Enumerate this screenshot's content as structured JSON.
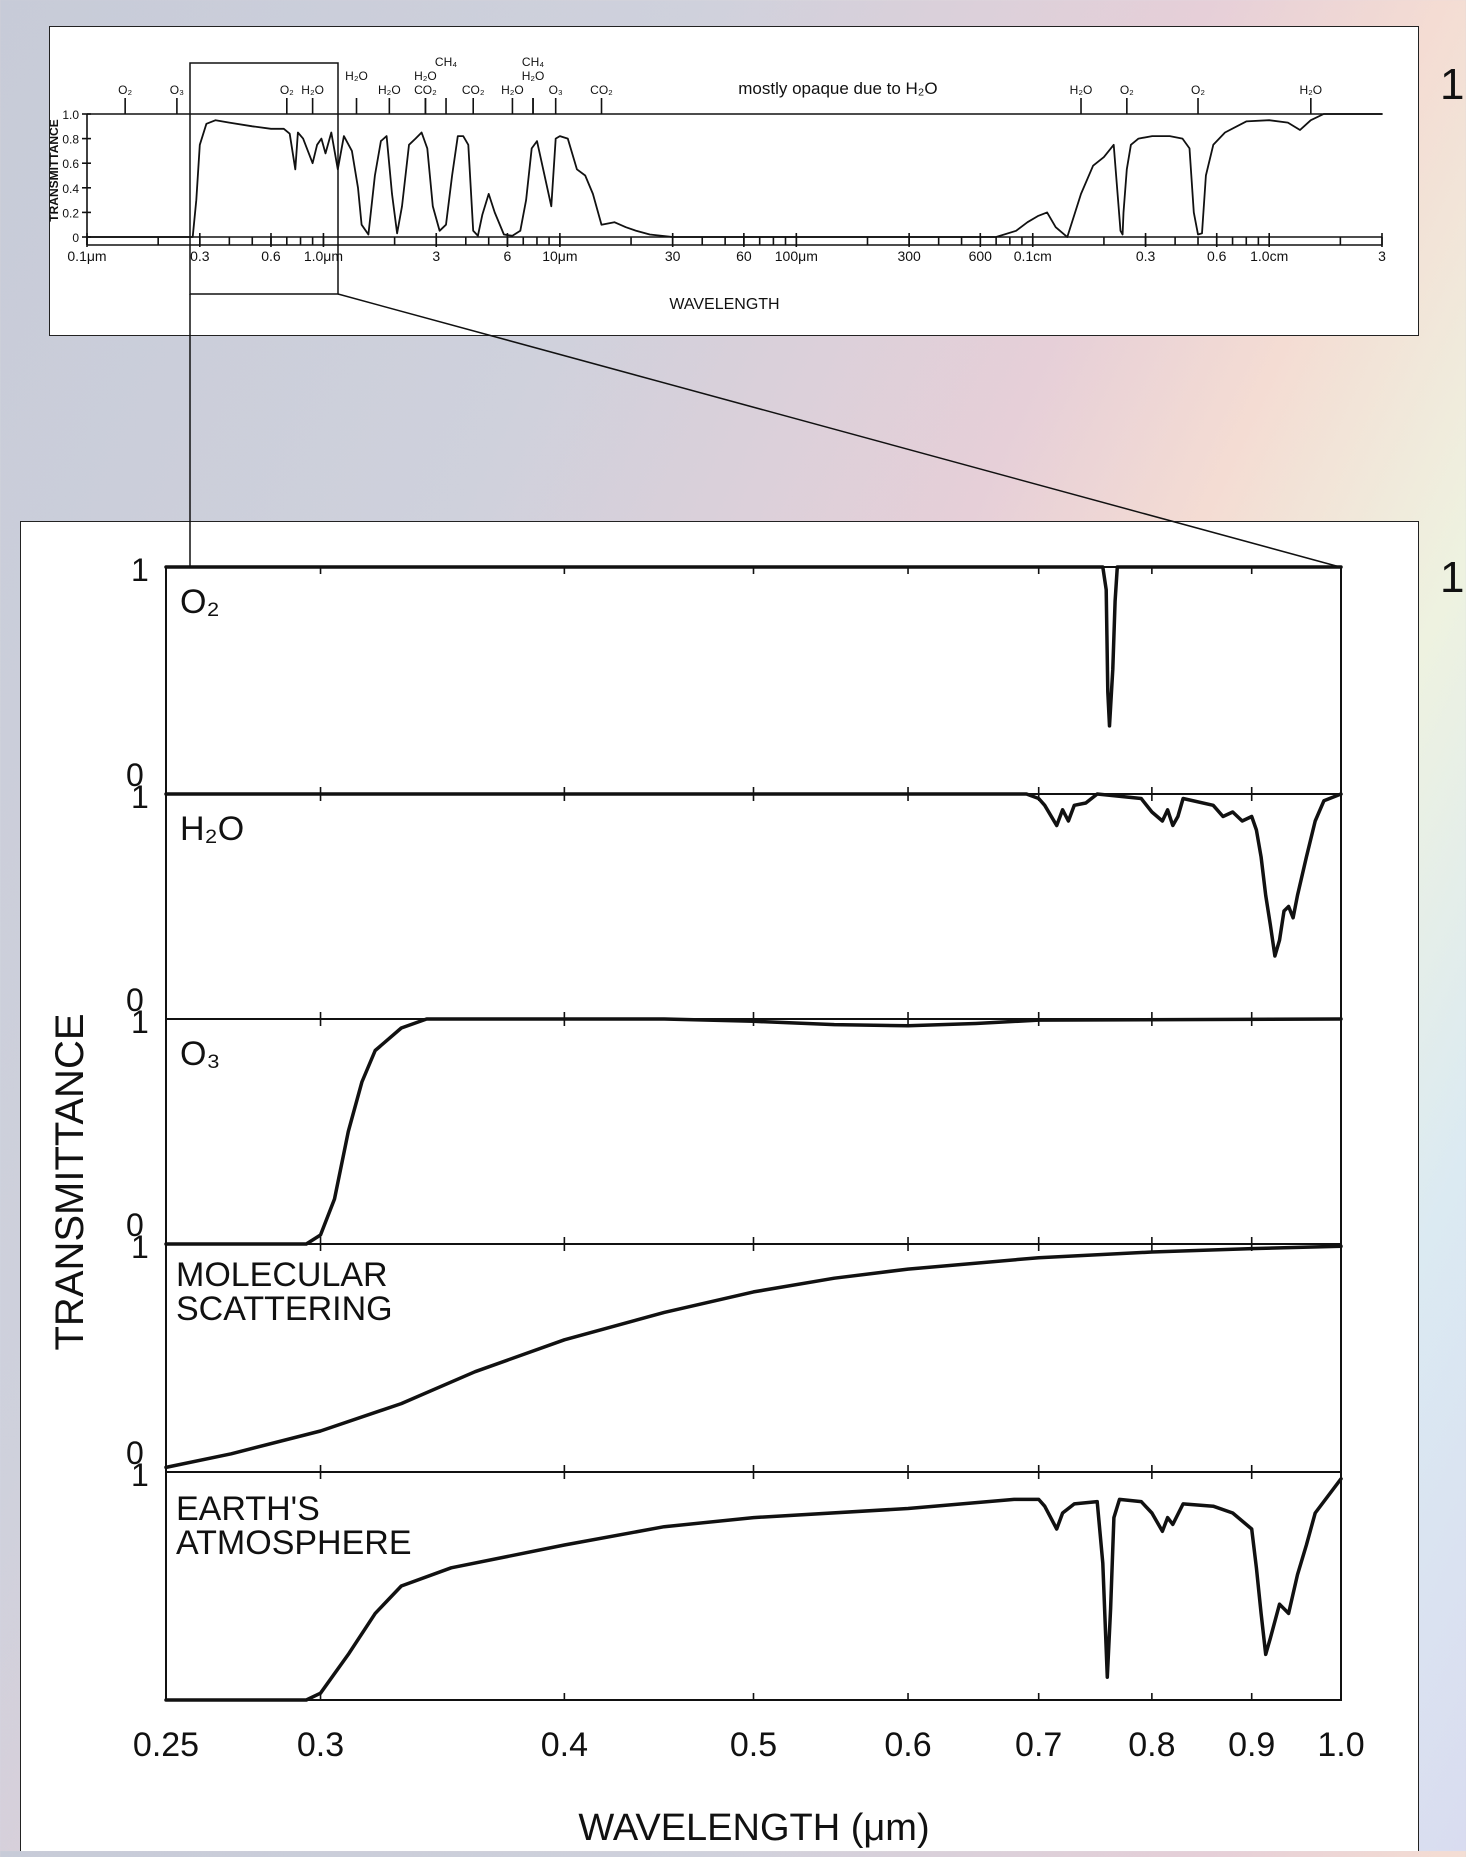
{
  "slide_numbers": [
    "1",
    "1"
  ],
  "chart_data": [
    {
      "type": "line",
      "id": "full-spectrum",
      "ylabel": "TRANSMITTANCE",
      "xlabel": "WAVELENGTH",
      "x_scale": "log",
      "ylim": [
        0,
        1.0
      ],
      "y_ticks": [
        "0",
        "0.2",
        "0.4",
        "0.6",
        "0.8",
        "1.0"
      ],
      "x_ticks": [
        {
          "label": "0.1μm",
          "x_um": 0.1
        },
        {
          "label": "0.3",
          "x_um": 0.3
        },
        {
          "label": "0.6",
          "x_um": 0.6
        },
        {
          "label": "1.0μm",
          "x_um": 1.0
        },
        {
          "label": "3",
          "x_um": 3
        },
        {
          "label": "6",
          "x_um": 6
        },
        {
          "label": "10μm",
          "x_um": 10
        },
        {
          "label": "30",
          "x_um": 30
        },
        {
          "label": "60",
          "x_um": 60
        },
        {
          "label": "100μm",
          "x_um": 100
        },
        {
          "label": "300",
          "x_um": 300
        },
        {
          "label": "600",
          "x_um": 600
        },
        {
          "label": "0.1cm",
          "x_um": 1000
        },
        {
          "label": "0.3",
          "x_um": 3000
        },
        {
          "label": "0.6",
          "x_um": 6000
        },
        {
          "label": "1.0cm",
          "x_um": 10000
        },
        {
          "label": "3",
          "x_um": 30000
        }
      ],
      "band_labels": [
        {
          "text": "O₂",
          "x_um": 0.145
        },
        {
          "text": "O₃",
          "x_um": 0.24
        },
        {
          "text": "O₂",
          "x_um": 0.7
        },
        {
          "text": "H₂O",
          "x_um": 0.9
        },
        {
          "text": "H₂O",
          "x_um": 1.38
        },
        {
          "text": "H₂O",
          "x_um": 1.9
        },
        {
          "text": "CH₄",
          "x_um": 3.3
        },
        {
          "text": "H₂O",
          "x_um": 2.7
        },
        {
          "text": "CO₂",
          "x_um": 2.7
        },
        {
          "text": "CO₂",
          "x_um": 4.3
        },
        {
          "text": "CH₄",
          "x_um": 7.7
        },
        {
          "text": "H₂O",
          "x_um": 7.7
        },
        {
          "text": "H₂O",
          "x_um": 6.3
        },
        {
          "text": "O₃",
          "x_um": 9.6
        },
        {
          "text": "CO₂",
          "x_um": 15
        },
        {
          "text": "mostly opaque due to H₂O",
          "x_um": 150
        },
        {
          "text": "H₂O",
          "x_um": 1600
        },
        {
          "text": "O₂",
          "x_um": 2500
        },
        {
          "text": "O₂",
          "x_um": 5000
        },
        {
          "text": "H₂O",
          "x_um": 15000
        }
      ],
      "series": [
        {
          "x": [
            0.1,
            0.28,
            0.29,
            0.3,
            0.32,
            0.35,
            0.4,
            0.5,
            0.6,
            0.68,
            0.72,
            0.76,
            0.78,
            0.82,
            0.9,
            0.94,
            0.98,
            1.02,
            1.08,
            1.15,
            1.22,
            1.32,
            1.4,
            1.45,
            1.55,
            1.65,
            1.75,
            1.85,
            1.95,
            2.05,
            2.15,
            2.3,
            2.45,
            2.6,
            2.75,
            2.9,
            3.1,
            3.3,
            3.5,
            3.7,
            3.9,
            4.1,
            4.3,
            4.5,
            4.7,
            5.0,
            5.3,
            5.8,
            6.3,
            6.8,
            7.2,
            7.6,
            8.0,
            8.5,
            9.2,
            9.6,
            10.0,
            10.8,
            11.8,
            12.8,
            13.8,
            15.0,
            17.0,
            19.0,
            21.0,
            24.0,
            30.0,
            700,
            850,
            950,
            1050,
            1150,
            1250,
            1400,
            1600,
            1800,
            2000,
            2200,
            2350,
            2400,
            2420,
            2500,
            2600,
            2800,
            3200,
            3800,
            4300,
            4600,
            4800,
            5000,
            5200,
            5400,
            5800,
            6500,
            8000,
            10000,
            12000,
            13500,
            15000,
            17000,
            20000,
            25000,
            30000
          ],
          "y": [
            0,
            0,
            0.3,
            0.75,
            0.92,
            0.95,
            0.93,
            0.9,
            0.88,
            0.88,
            0.84,
            0.55,
            0.85,
            0.8,
            0.6,
            0.75,
            0.8,
            0.68,
            0.85,
            0.55,
            0.82,
            0.7,
            0.4,
            0.1,
            0.02,
            0.5,
            0.78,
            0.82,
            0.35,
            0.03,
            0.25,
            0.75,
            0.8,
            0.85,
            0.72,
            0.25,
            0.05,
            0.1,
            0.5,
            0.82,
            0.82,
            0.75,
            0.05,
            0.01,
            0.18,
            0.35,
            0.2,
            0.02,
            0.01,
            0.05,
            0.3,
            0.72,
            0.78,
            0.55,
            0.25,
            0.8,
            0.82,
            0.8,
            0.55,
            0.5,
            0.35,
            0.1,
            0.12,
            0.08,
            0.05,
            0.02,
            0,
            0,
            0.05,
            0.12,
            0.17,
            0.2,
            0.08,
            0,
            0.35,
            0.58,
            0.65,
            0.75,
            0.05,
            0.02,
            0.2,
            0.55,
            0.75,
            0.8,
            0.82,
            0.82,
            0.8,
            0.72,
            0.2,
            0.02,
            0.03,
            0.5,
            0.75,
            0.85,
            0.94,
            0.95,
            0.93,
            0.87,
            0.95,
            1.0,
            1.0,
            1.0,
            1.0
          ]
        }
      ]
    },
    {
      "type": "line",
      "id": "zoomed-panels",
      "ylabel": "TRANSMITTANCE",
      "xlabel": "WAVELENGTH (μm)",
      "x_scale": "log",
      "xlim": [
        0.25,
        1.0
      ],
      "x_ticks": [
        "0.25",
        "0.3",
        "0.4",
        "0.5",
        "0.6",
        "0.7",
        "0.8",
        "0.9",
        "1.0"
      ],
      "x_tick_values": [
        0.25,
        0.3,
        0.4,
        0.5,
        0.6,
        0.7,
        0.8,
        0.9,
        1.0
      ],
      "panels": [
        {
          "name": "O₂",
          "y_top_label": "1",
          "y_bottom_label": "0",
          "x": [
            0.25,
            0.755,
            0.758,
            0.7595,
            0.761,
            0.764,
            0.766,
            0.768,
            1.0
          ],
          "y": [
            1.0,
            1.0,
            0.9,
            0.45,
            0.3,
            0.55,
            0.85,
            1.0,
            1.0
          ]
        },
        {
          "name": "H₂O",
          "y_top_label": "1",
          "y_bottom_label": "0",
          "x": [
            0.25,
            0.69,
            0.7,
            0.705,
            0.715,
            0.72,
            0.725,
            0.73,
            0.74,
            0.75,
            0.79,
            0.8,
            0.81,
            0.815,
            0.82,
            0.825,
            0.83,
            0.86,
            0.87,
            0.88,
            0.89,
            0.9,
            0.905,
            0.91,
            0.915,
            0.92,
            0.925,
            0.93,
            0.935,
            0.94,
            0.945,
            0.95,
            0.96,
            0.97,
            0.98,
            1.0
          ],
          "y": [
            1.0,
            1.0,
            0.98,
            0.95,
            0.86,
            0.93,
            0.88,
            0.95,
            0.96,
            1.0,
            0.98,
            0.92,
            0.88,
            0.93,
            0.86,
            0.9,
            0.98,
            0.95,
            0.9,
            0.92,
            0.88,
            0.9,
            0.84,
            0.72,
            0.55,
            0.42,
            0.28,
            0.35,
            0.48,
            0.5,
            0.45,
            0.55,
            0.72,
            0.88,
            0.97,
            1.0
          ]
        },
        {
          "name": "O₃",
          "y_top_label": "1",
          "y_bottom_label": "0",
          "x": [
            0.25,
            0.295,
            0.3,
            0.305,
            0.31,
            0.315,
            0.32,
            0.33,
            0.34,
            0.36,
            0.45,
            0.5,
            0.55,
            0.6,
            0.65,
            0.7,
            1.0
          ],
          "y": [
            0,
            0,
            0.04,
            0.2,
            0.5,
            0.72,
            0.86,
            0.96,
            1.0,
            1.0,
            1.0,
            0.99,
            0.975,
            0.97,
            0.98,
            0.995,
            1.0
          ]
        },
        {
          "name": "MOLECULAR SCATTERING",
          "y_top_label": "1",
          "y_bottom_label": "0",
          "x": [
            0.25,
            0.27,
            0.3,
            0.33,
            0.36,
            0.4,
            0.45,
            0.5,
            0.55,
            0.6,
            0.7,
            0.8,
            0.9,
            1.0
          ],
          "y": [
            0.02,
            0.08,
            0.18,
            0.3,
            0.44,
            0.58,
            0.7,
            0.79,
            0.85,
            0.89,
            0.94,
            0.965,
            0.98,
            0.99
          ]
        },
        {
          "name": "EARTH'S ATMOSPHERE",
          "y_top_label": "1",
          "y_bottom_label": "",
          "x": [
            0.25,
            0.295,
            0.3,
            0.31,
            0.32,
            0.33,
            0.35,
            0.4,
            0.45,
            0.5,
            0.6,
            0.68,
            0.7,
            0.705,
            0.715,
            0.72,
            0.73,
            0.75,
            0.755,
            0.759,
            0.762,
            0.765,
            0.77,
            0.79,
            0.8,
            0.81,
            0.815,
            0.82,
            0.83,
            0.86,
            0.88,
            0.9,
            0.905,
            0.91,
            0.915,
            0.92,
            0.93,
            0.94,
            0.95,
            0.96,
            0.97,
            1.0
          ],
          "y": [
            0,
            0,
            0.03,
            0.2,
            0.38,
            0.5,
            0.58,
            0.68,
            0.76,
            0.8,
            0.84,
            0.88,
            0.88,
            0.85,
            0.75,
            0.82,
            0.86,
            0.87,
            0.6,
            0.1,
            0.4,
            0.8,
            0.88,
            0.87,
            0.82,
            0.74,
            0.8,
            0.77,
            0.86,
            0.85,
            0.82,
            0.75,
            0.58,
            0.38,
            0.2,
            0.27,
            0.42,
            0.38,
            0.55,
            0.68,
            0.82,
            0.97
          ]
        }
      ]
    }
  ]
}
